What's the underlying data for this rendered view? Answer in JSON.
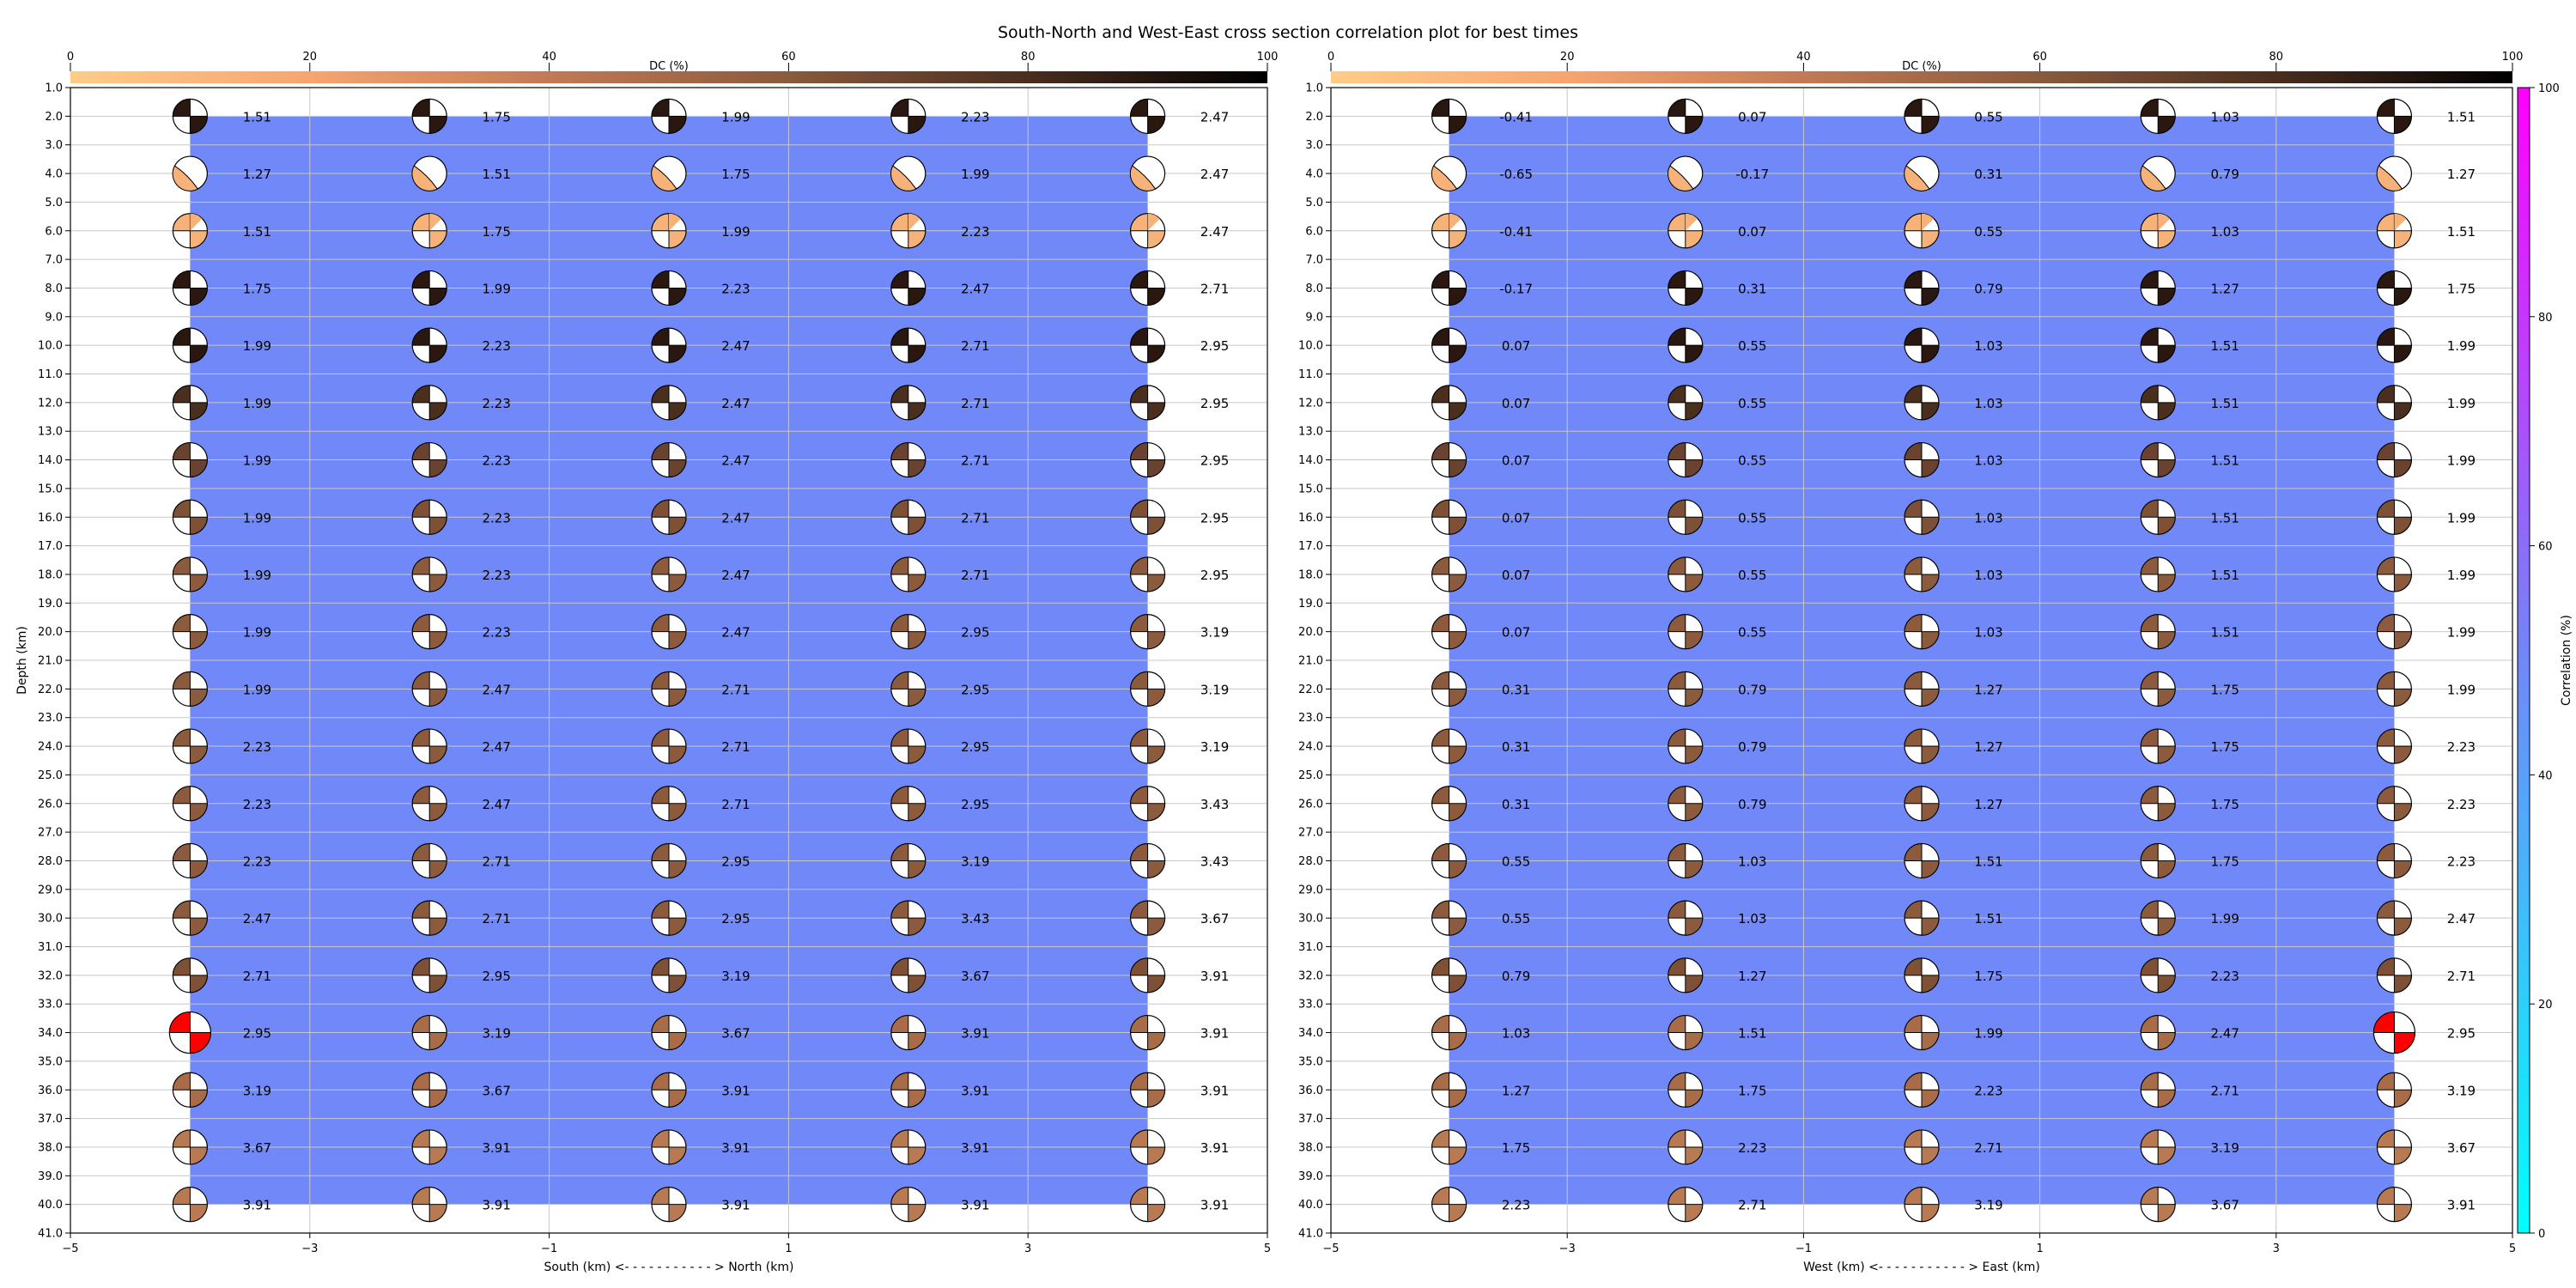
{
  "title": "South-North and West-East cross section correlation plot for best times",
  "dc_colorbar": {
    "label": "DC (%)",
    "ticks": [
      "0",
      "20",
      "40",
      "60",
      "80",
      "100"
    ]
  },
  "corr_colorbar": {
    "label": "Correlation (%)",
    "ticks": [
      "0",
      "20",
      "40",
      "60",
      "80",
      "100"
    ],
    "range": [
      0,
      100
    ]
  },
  "panels": [
    {
      "id": "sn",
      "xlabel": "South (km) <- - - - - - - - - - - > North (km)",
      "ylabel": "Depth (km)",
      "xticks": [
        "−5",
        "−3",
        "−1",
        "1",
        "3",
        "5"
      ],
      "xlim": [
        -5,
        5
      ],
      "ylim": [
        41.0,
        1.0
      ],
      "yticks": [
        "1.0",
        "2.0",
        "3.0",
        "4.0",
        "5.0",
        "6.0",
        "7.0",
        "8.0",
        "9.0",
        "10.0",
        "11.0",
        "12.0",
        "13.0",
        "14.0",
        "15.0",
        "16.0",
        "17.0",
        "18.0",
        "19.0",
        "20.0",
        "21.0",
        "22.0",
        "23.0",
        "24.0",
        "25.0",
        "26.0",
        "27.0",
        "28.0",
        "29.0",
        "30.0",
        "31.0",
        "32.0",
        "33.0",
        "34.0",
        "35.0",
        "36.0",
        "37.0",
        "38.0",
        "39.0",
        "40.0",
        "41.0"
      ]
    },
    {
      "id": "we",
      "xlabel": "West (km) <- - - - - - - - - - - > East (km)",
      "ylabel": "",
      "xticks": [
        "−5",
        "−3",
        "−1",
        "1",
        "3",
        "5"
      ],
      "xlim": [
        -5,
        5
      ],
      "ylim": [
        41.0,
        1.0
      ],
      "yticks": [
        "1.0",
        "2.0",
        "3.0",
        "4.0",
        "5.0",
        "6.0",
        "7.0",
        "8.0",
        "9.0",
        "10.0",
        "11.0",
        "12.0",
        "13.0",
        "14.0",
        "15.0",
        "16.0",
        "17.0",
        "18.0",
        "19.0",
        "20.0",
        "21.0",
        "22.0",
        "23.0",
        "24.0",
        "25.0",
        "26.0",
        "27.0",
        "28.0",
        "29.0",
        "30.0",
        "31.0",
        "32.0",
        "33.0",
        "34.0",
        "35.0",
        "36.0",
        "37.0",
        "38.0",
        "39.0",
        "40.0",
        "41.0"
      ]
    }
  ],
  "chart_data": [
    {
      "type": "heatmap",
      "panel": "sn",
      "x": [
        -4,
        -2,
        0,
        2,
        4
      ],
      "depths": [
        2,
        4,
        6,
        8,
        10,
        12,
        14,
        16,
        18,
        20,
        22,
        24,
        26,
        28,
        30,
        32,
        34,
        36,
        38,
        40
      ],
      "correlation_fill": 50,
      "best_solution": {
        "x": -4,
        "depth": 34
      },
      "values": [
        [
          "1.51",
          "1.75",
          "1.99",
          "2.23",
          "2.47"
        ],
        [
          "1.27",
          "1.51",
          "1.75",
          "1.99",
          "2.47"
        ],
        [
          "1.51",
          "1.75",
          "1.99",
          "2.23",
          "2.47"
        ],
        [
          "1.75",
          "1.99",
          "2.23",
          "2.47",
          "2.71"
        ],
        [
          "1.99",
          "2.23",
          "2.47",
          "2.71",
          "2.95"
        ],
        [
          "1.99",
          "2.23",
          "2.47",
          "2.71",
          "2.95"
        ],
        [
          "1.99",
          "2.23",
          "2.47",
          "2.71",
          "2.95"
        ],
        [
          "1.99",
          "2.23",
          "2.47",
          "2.71",
          "2.95"
        ],
        [
          "1.99",
          "2.23",
          "2.47",
          "2.71",
          "2.95"
        ],
        [
          "1.99",
          "2.23",
          "2.47",
          "2.95",
          "3.19"
        ],
        [
          "1.99",
          "2.47",
          "2.71",
          "2.95",
          "3.19"
        ],
        [
          "2.23",
          "2.47",
          "2.71",
          "2.95",
          "3.19"
        ],
        [
          "2.23",
          "2.47",
          "2.71",
          "2.95",
          "3.43"
        ],
        [
          "2.23",
          "2.71",
          "2.95",
          "3.19",
          "3.43"
        ],
        [
          "2.47",
          "2.71",
          "2.95",
          "3.43",
          "3.67"
        ],
        [
          "2.71",
          "2.95",
          "3.19",
          "3.67",
          "3.91"
        ],
        [
          "2.95",
          "3.19",
          "3.67",
          "3.91",
          "3.91"
        ],
        [
          "3.19",
          "3.67",
          "3.91",
          "3.91",
          "3.91"
        ],
        [
          "3.67",
          "3.91",
          "3.91",
          "3.91",
          "3.91"
        ],
        [
          "3.91",
          "3.91",
          "3.91",
          "3.91",
          "3.91"
        ]
      ]
    },
    {
      "type": "heatmap",
      "panel": "we",
      "x": [
        -4,
        -2,
        0,
        2,
        4
      ],
      "depths": [
        2,
        4,
        6,
        8,
        10,
        12,
        14,
        16,
        18,
        20,
        22,
        24,
        26,
        28,
        30,
        32,
        34,
        36,
        38,
        40
      ],
      "correlation_fill": 50,
      "best_solution": {
        "x": 4,
        "depth": 34
      },
      "values": [
        [
          "-0.41",
          "0.07",
          "0.55",
          "1.03",
          "1.51"
        ],
        [
          "-0.65",
          "-0.17",
          "0.31",
          "0.79",
          "1.27"
        ],
        [
          "-0.41",
          "0.07",
          "0.55",
          "1.03",
          "1.51"
        ],
        [
          "-0.17",
          "0.31",
          "0.79",
          "1.27",
          "1.75"
        ],
        [
          "0.07",
          "0.55",
          "1.03",
          "1.51",
          "1.99"
        ],
        [
          "0.07",
          "0.55",
          "1.03",
          "1.51",
          "1.99"
        ],
        [
          "0.07",
          "0.55",
          "1.03",
          "1.51",
          "1.99"
        ],
        [
          "0.07",
          "0.55",
          "1.03",
          "1.51",
          "1.99"
        ],
        [
          "0.07",
          "0.55",
          "1.03",
          "1.51",
          "1.99"
        ],
        [
          "0.07",
          "0.55",
          "1.03",
          "1.51",
          "1.99"
        ],
        [
          "0.31",
          "0.79",
          "1.27",
          "1.75",
          "1.99"
        ],
        [
          "0.31",
          "0.79",
          "1.27",
          "1.75",
          "2.23"
        ],
        [
          "0.31",
          "0.79",
          "1.27",
          "1.75",
          "2.23"
        ],
        [
          "0.55",
          "1.03",
          "1.51",
          "1.75",
          "2.23"
        ],
        [
          "0.55",
          "1.03",
          "1.51",
          "1.99",
          "2.47"
        ],
        [
          "0.79",
          "1.27",
          "1.75",
          "2.23",
          "2.71"
        ],
        [
          "1.03",
          "1.51",
          "1.99",
          "2.47",
          "2.95"
        ],
        [
          "1.27",
          "1.75",
          "2.23",
          "2.71",
          "3.19"
        ],
        [
          "1.75",
          "2.23",
          "2.71",
          "3.19",
          "3.67"
        ],
        [
          "2.23",
          "2.71",
          "3.19",
          "3.67",
          "3.91"
        ]
      ]
    }
  ],
  "colors": {
    "correlation_fill": "#7088f8",
    "best_solution": "#ff0000",
    "dc_cmap": [
      "#ffcc88",
      "#f08a5a",
      "#a86848",
      "#6a3e28",
      "#2c1a10",
      "#000000"
    ],
    "corr_cmap": [
      "#00ffff",
      "#4d8cf5",
      "#8a5cf0",
      "#ff00ff"
    ]
  }
}
